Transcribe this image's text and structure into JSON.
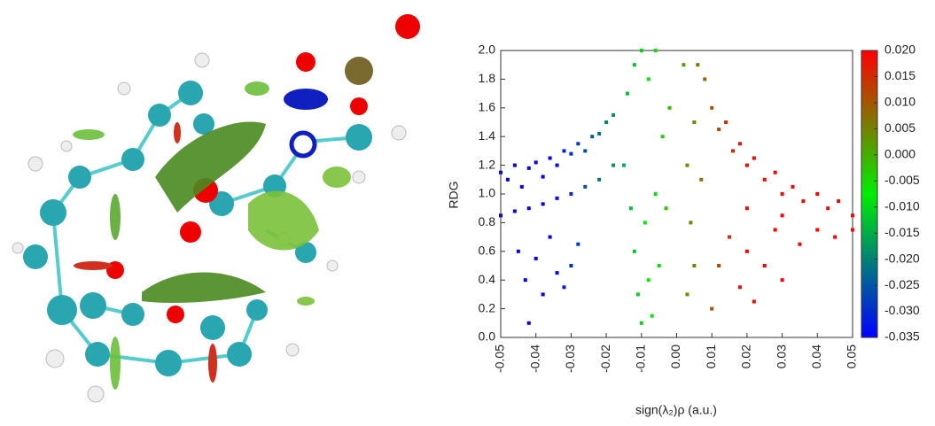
{
  "chart_data": {
    "type": "scatter",
    "xlabel": "sign(λ₂)ρ (a.u.)",
    "ylabel": "RDG",
    "x": [
      -0.05,
      -0.048,
      -0.046,
      -0.044,
      -0.042,
      -0.04,
      -0.038,
      -0.036,
      -0.034,
      -0.032,
      -0.03,
      -0.028,
      -0.026,
      -0.024,
      -0.022,
      -0.02,
      -0.018,
      -0.05,
      -0.046,
      -0.042,
      -0.038,
      -0.034,
      -0.03,
      -0.026,
      -0.022,
      -0.018,
      -0.045,
      -0.043,
      -0.04,
      -0.038,
      -0.036,
      -0.034,
      -0.032,
      -0.03,
      -0.042,
      -0.028,
      -0.014,
      -0.012,
      -0.01,
      -0.008,
      -0.006,
      -0.012,
      -0.011,
      -0.01,
      -0.009,
      -0.008,
      -0.007,
      -0.006,
      -0.005,
      -0.004,
      -0.003,
      -0.002,
      -0.015,
      -0.013,
      0.002,
      0.003,
      0.003,
      0.004,
      0.005,
      0.005,
      0.006,
      0.007,
      0.008,
      0.01,
      0.012,
      0.014,
      0.016,
      0.018,
      0.02,
      0.022,
      0.025,
      0.028,
      0.03,
      0.033,
      0.036,
      0.04,
      0.043,
      0.046,
      0.05,
      0.01,
      0.012,
      0.015,
      0.018,
      0.02,
      0.022,
      0.025,
      0.028,
      0.03,
      0.035,
      0.04,
      0.045,
      0.05,
      0.02,
      0.03
    ],
    "values": [
      1.15,
      1.1,
      1.2,
      1.05,
      1.18,
      1.22,
      1.12,
      1.25,
      1.2,
      1.3,
      1.28,
      1.35,
      1.3,
      1.4,
      1.42,
      1.5,
      1.55,
      0.85,
      0.88,
      0.9,
      0.93,
      0.97,
      1.0,
      1.05,
      1.1,
      1.2,
      0.6,
      0.4,
      0.55,
      0.3,
      0.7,
      0.45,
      0.35,
      0.5,
      0.1,
      0.65,
      1.7,
      1.9,
      2.0,
      1.8,
      2.0,
      0.6,
      0.3,
      0.1,
      0.8,
      0.4,
      0.15,
      1.0,
      0.5,
      1.4,
      0.9,
      1.6,
      1.2,
      0.9,
      1.9,
      1.2,
      0.3,
      0.8,
      1.5,
      0.5,
      1.9,
      1.1,
      1.8,
      1.6,
      1.45,
      1.5,
      1.3,
      1.35,
      1.2,
      1.25,
      1.1,
      1.15,
      1.0,
      1.05,
      0.95,
      1.0,
      0.9,
      0.95,
      0.85,
      0.2,
      0.5,
      0.7,
      0.35,
      0.6,
      0.25,
      0.5,
      0.75,
      0.4,
      0.65,
      0.75,
      0.7,
      0.75,
      0.9,
      0.85
    ],
    "xlim": [
      -0.05,
      0.05
    ],
    "xticks": [
      -0.05,
      -0.04,
      -0.03,
      -0.02,
      -0.01,
      {
        "value": 0,
        "label": "0.00"
      },
      0.01,
      0.02,
      0.03,
      0.04,
      0.05
    ],
    "ylim": [
      0,
      2
    ],
    "yticks": [
      {
        "value": 0,
        "label": "0.0"
      },
      0.2,
      0.4,
      0.6,
      0.8,
      {
        "value": 1,
        "label": "1.0"
      },
      1.2,
      1.4,
      1.6,
      1.8,
      {
        "value": 2,
        "label": "2.0"
      }
    ],
    "colorbar": {
      "lim": [
        -0.035,
        0.02
      ],
      "colors": [
        "#0000ff",
        "#00ee00",
        "#ff0000"
      ],
      "ticks": [
        -0.035,
        {
          "value": -0.03,
          "label": "-0.030"
        },
        -0.025,
        {
          "value": -0.02,
          "label": "-0.020"
        },
        -0.015,
        {
          "value": -0.01,
          "label": "-0.010"
        },
        -0.005,
        {
          "value": 0,
          "label": "0.000"
        },
        0.005,
        {
          "value": 0.01,
          "label": "0.010"
        },
        0.015,
        {
          "value": 0.02,
          "label": "0.020"
        }
      ]
    }
  }
}
